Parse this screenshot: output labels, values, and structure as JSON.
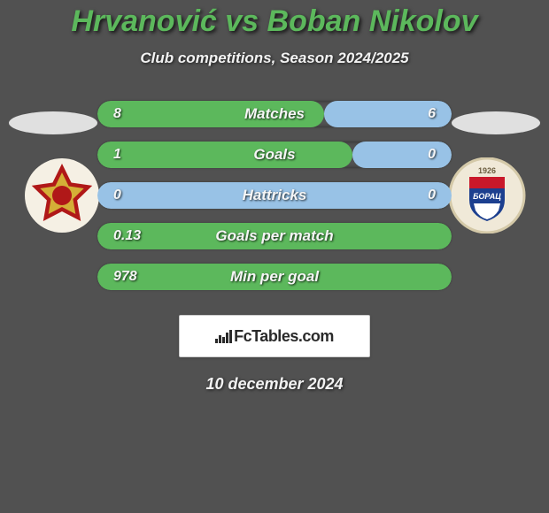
{
  "title": "Hrvanović vs Boban Nikolov",
  "subtitle": "Club competitions, Season 2024/2025",
  "date": "10 december 2024",
  "logo_text": "FcTables.com",
  "colors": {
    "bar_left": "#5cb85c",
    "bar_right": "#98c2e6",
    "bar_neutral": "#98c2e6",
    "title_color": "#5cb85c",
    "background": "#515151"
  },
  "stats": [
    {
      "label": "Matches",
      "left_val": "8",
      "right_val": "6",
      "left_pct": 64,
      "right_pct": 36
    },
    {
      "label": "Goals",
      "left_val": "1",
      "right_val": "0",
      "left_pct": 72,
      "right_pct": 28
    },
    {
      "label": "Hattricks",
      "left_val": "0",
      "right_val": "0",
      "left_pct": 0,
      "right_pct": 100
    },
    {
      "label": "Goals per match",
      "left_val": "0.13",
      "right_val": "",
      "left_pct": 100,
      "right_pct": 0
    },
    {
      "label": "Min per goal",
      "left_val": "978",
      "right_val": "",
      "left_pct": 100,
      "right_pct": 0
    }
  ],
  "badges": {
    "left": {
      "name": "sloboda-tuzla-crest",
      "bg": "#f5f0e4",
      "star_outer": "#b01818",
      "star_inner": "#d4af37",
      "center": "#b01818"
    },
    "right": {
      "name": "borac-banja-luka-crest",
      "bg": "#f5f0e4",
      "shield_top": "#c9182a",
      "shield_mid": "#1c3f8f",
      "shield_bot": "#ffffff",
      "year": "1926"
    }
  }
}
